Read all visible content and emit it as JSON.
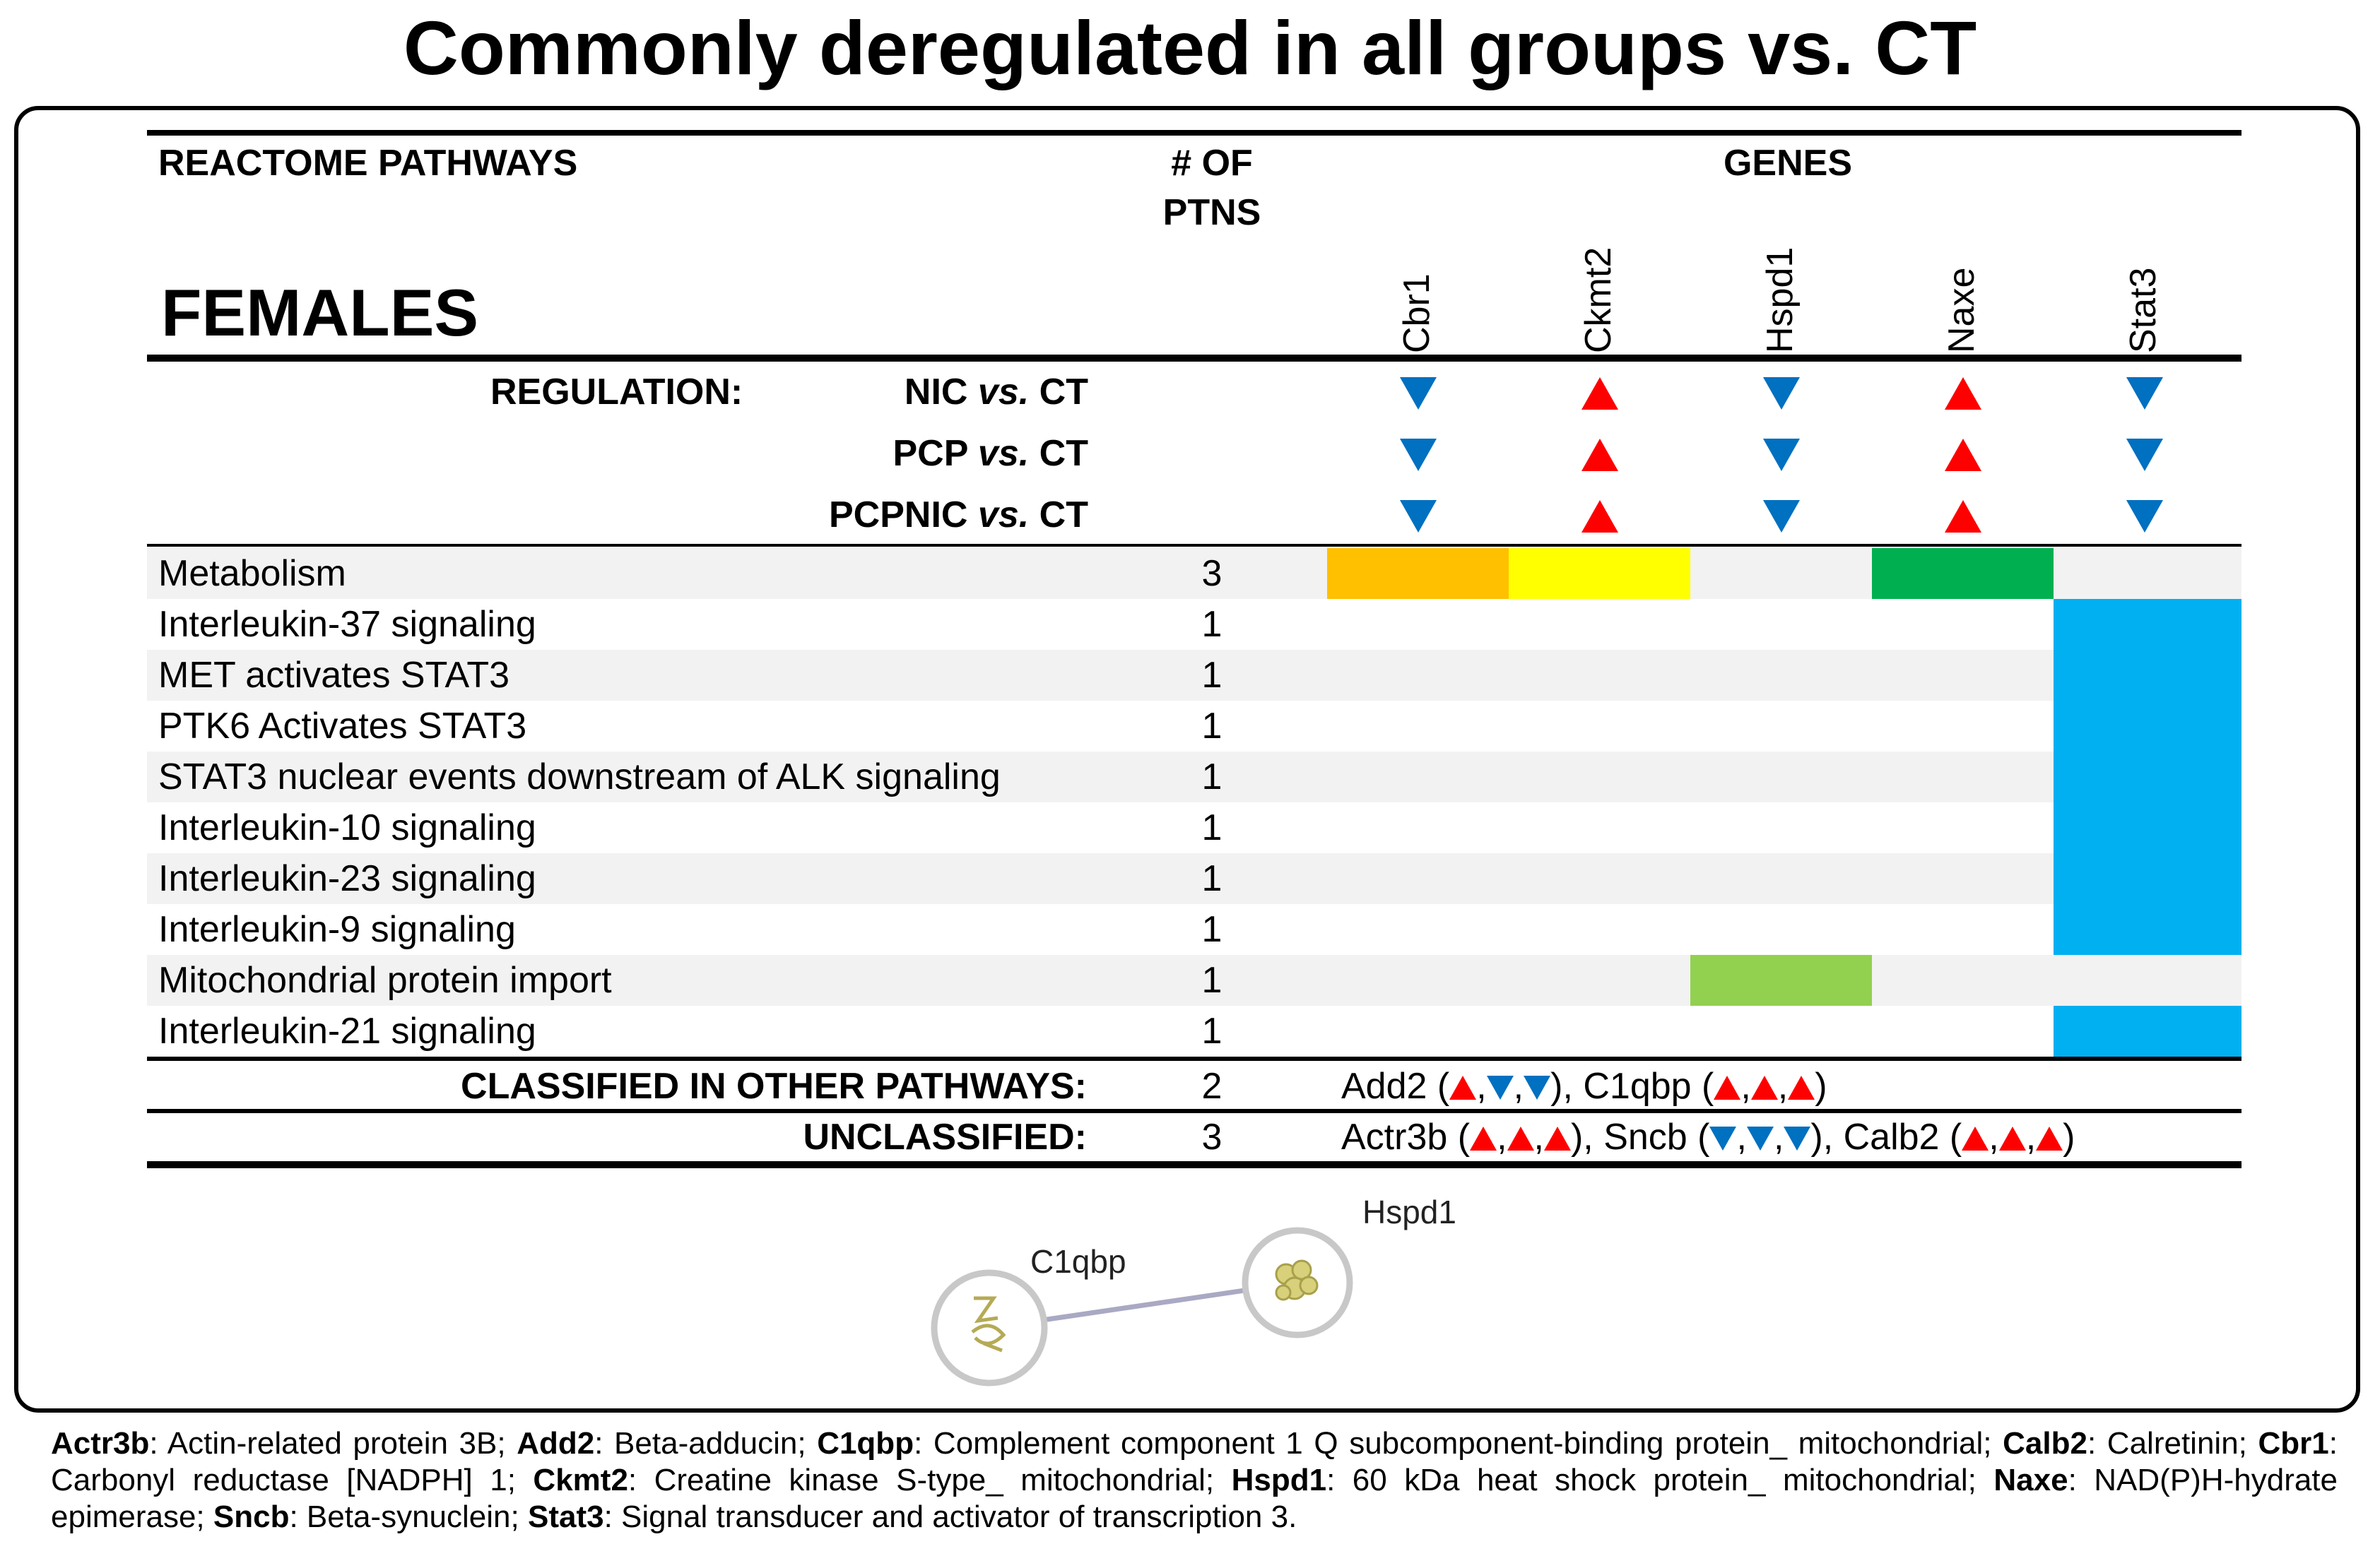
{
  "title": "Commonly deregulated in all groups vs. CT",
  "header": {
    "pathways": "REACTOME PATHWAYS",
    "num_line1": "# OF",
    "num_line2": "PTNS",
    "genes": "GENES"
  },
  "section": "FEMALES",
  "genes": [
    "Cbr1",
    "Ckmt2",
    "Hspd1",
    "Naxe",
    "Stat3"
  ],
  "regulation": {
    "label": "REGULATION:",
    "vs": "vs.",
    "ref": "CT",
    "rows": [
      {
        "group": "NIC",
        "dirs": [
          "down",
          "up",
          "down",
          "up",
          "down"
        ]
      },
      {
        "group": "PCP",
        "dirs": [
          "down",
          "up",
          "down",
          "up",
          "down"
        ]
      },
      {
        "group": "PCPNIC",
        "dirs": [
          "down",
          "up",
          "down",
          "up",
          "down"
        ]
      }
    ]
  },
  "colors": {
    "orange": "#ffc000",
    "yellow": "#ffff00",
    "dark_green": "#00b050",
    "light_green": "#92d050",
    "blue": "#00b0f0",
    "up": "#ff0000",
    "down": "#0070c0",
    "row_shade": "#f2f2f2"
  },
  "pathways": [
    {
      "name": "Metabolism",
      "count": "3",
      "cells": [
        "orange",
        "yellow",
        null,
        "dark_green",
        null
      ]
    },
    {
      "name": "Interleukin-37 signaling",
      "count": "1",
      "cells": [
        null,
        null,
        null,
        null,
        "blue"
      ]
    },
    {
      "name": "MET activates STAT3",
      "count": "1",
      "cells": [
        null,
        null,
        null,
        null,
        "blue"
      ]
    },
    {
      "name": "PTK6 Activates STAT3",
      "count": "1",
      "cells": [
        null,
        null,
        null,
        null,
        "blue"
      ]
    },
    {
      "name": "STAT3 nuclear events downstream of ALK signaling",
      "count": "1",
      "cells": [
        null,
        null,
        null,
        null,
        "blue"
      ]
    },
    {
      "name": "Interleukin-10 signaling",
      "count": "1",
      "cells": [
        null,
        null,
        null,
        null,
        "blue"
      ]
    },
    {
      "name": "Interleukin-23 signaling",
      "count": "1",
      "cells": [
        null,
        null,
        null,
        null,
        "blue"
      ]
    },
    {
      "name": "Interleukin-9 signaling",
      "count": "1",
      "cells": [
        null,
        null,
        null,
        null,
        "blue"
      ]
    },
    {
      "name": "Mitochondrial protein import",
      "count": "1",
      "cells": [
        null,
        null,
        "light_green",
        null,
        null
      ]
    },
    {
      "name": "Interleukin-21 signaling",
      "count": "1",
      "cells": [
        null,
        null,
        null,
        null,
        "blue"
      ]
    }
  ],
  "other": {
    "label": "CLASSIFIED IN OTHER PATHWAYS:",
    "count": "2",
    "items": [
      {
        "gene": "Add2",
        "dirs": [
          "up",
          "down",
          "down"
        ]
      },
      {
        "gene": "C1qbp",
        "dirs": [
          "up",
          "up",
          "up"
        ]
      }
    ]
  },
  "unclassified": {
    "label": "UNCLASSIFIED:",
    "count": "3",
    "items": [
      {
        "gene": "Actr3b",
        "dirs": [
          "up",
          "up",
          "up"
        ]
      },
      {
        "gene": "Sncb",
        "dirs": [
          "down",
          "down",
          "down"
        ]
      },
      {
        "gene": "Calb2",
        "dirs": [
          "up",
          "up",
          "up"
        ]
      }
    ]
  },
  "network": {
    "nodes": [
      "C1qbp",
      "Hspd1"
    ]
  },
  "footer": [
    {
      "abbr": "Actr3b",
      "desc": "Actin-related protein 3B"
    },
    {
      "abbr": "Add2",
      "desc": "Beta-adducin"
    },
    {
      "abbr": "C1qbp",
      "desc": "Complement component 1 Q subcomponent-binding protein_ mitochondrial"
    },
    {
      "abbr": "Calb2",
      "desc": "Calretinin"
    },
    {
      "abbr": "Cbr1",
      "desc": "Carbonyl reductase [NADPH] 1"
    },
    {
      "abbr": "Ckmt2",
      "desc": "Creatine kinase S-type_ mitochondrial"
    },
    {
      "abbr": "Hspd1",
      "desc": "60 kDa heat shock protein_ mitochondrial"
    },
    {
      "abbr": "Naxe",
      "desc": "NAD(P)H-hydrate epimerase"
    },
    {
      "abbr": "Sncb",
      "desc": "Beta-synuclein"
    },
    {
      "abbr": "Stat3",
      "desc": "Signal transducer and activator of transcription 3"
    }
  ]
}
